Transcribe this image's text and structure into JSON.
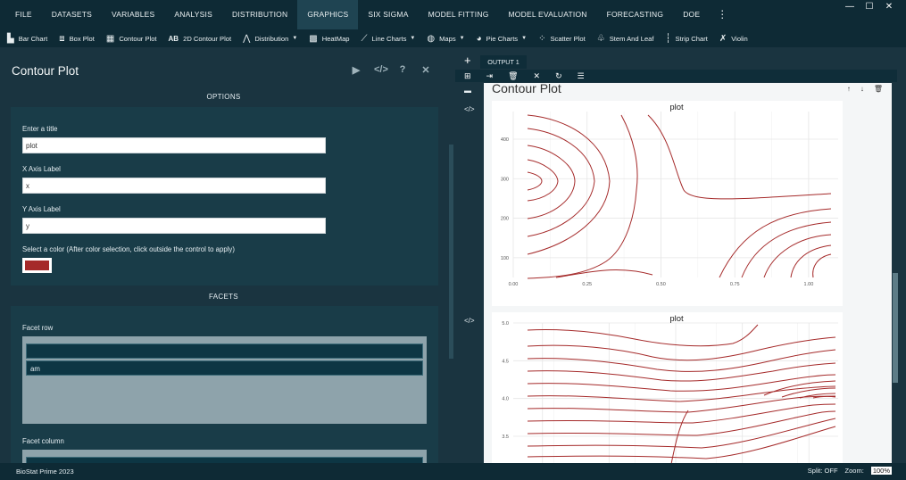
{
  "menu": {
    "items": [
      "FILE",
      "DATASETS",
      "VARIABLES",
      "ANALYSIS",
      "DISTRIBUTION",
      "GRAPHICS",
      "SIX SIGMA",
      "MODEL FITTING",
      "MODEL EVALUATION",
      "FORECASTING",
      "DOE"
    ],
    "active": "GRAPHICS",
    "more": "⋮"
  },
  "window": {
    "minimize": "—",
    "maximize": "☐",
    "close": "✕"
  },
  "toolbar": {
    "bar_chart": "Bar Chart",
    "box_plot": "Box Plot",
    "contour_plot": "Contour Plot",
    "contour_2d": "2D Contour Plot",
    "distribution": "Distribution",
    "heatmap": "HeatMap",
    "line_charts": "Line Charts",
    "maps": "Maps",
    "pie_charts": "Pie Charts",
    "scatter_plot": "Scatter Plot",
    "stem_and_leaf": "Stem And Leaf",
    "strip_chart": "Strip Chart",
    "violin": "Violin",
    "ab_glyph": "AB"
  },
  "panel": {
    "title": "Contour Plot",
    "options_heading": "OPTIONS",
    "title_label": "Enter a title",
    "title_value": "plot",
    "xlabel_label": "X Axis Label",
    "xlabel_value": "x",
    "ylabel_label": "Y Axis Label",
    "ylabel_value": "y",
    "color_label": "Select a color (After color selection, click outside the control to apply)",
    "color_value": "#a52a2a",
    "facets_heading": "FACETS",
    "facet_row_label": "Facet row",
    "facet_row_item": "am",
    "facet_column_label": "Facet column"
  },
  "output": {
    "tab_label": "OUTPUT 1",
    "heading": "Contour Plot"
  },
  "status": {
    "app": "BioStat Prime 2023",
    "split": "Split: OFF",
    "zoom_label": "Zoom:",
    "zoom_value": "100%"
  },
  "chart_data": [
    {
      "type": "contour",
      "title": "plot",
      "x_ticks": [
        "0.00",
        "0.25",
        "0.50",
        "0.75",
        "1.00"
      ],
      "y_ticks": [
        "100",
        "200",
        "300",
        "400"
      ],
      "xlim": [
        0,
        1.1
      ],
      "ylim": [
        50,
        470
      ],
      "line_color": "#a52a2a"
    },
    {
      "type": "contour",
      "title": "plot",
      "y_ticks": [
        "3.5",
        "4.0",
        "4.5",
        "5.0"
      ],
      "line_color": "#a52a2a"
    }
  ]
}
